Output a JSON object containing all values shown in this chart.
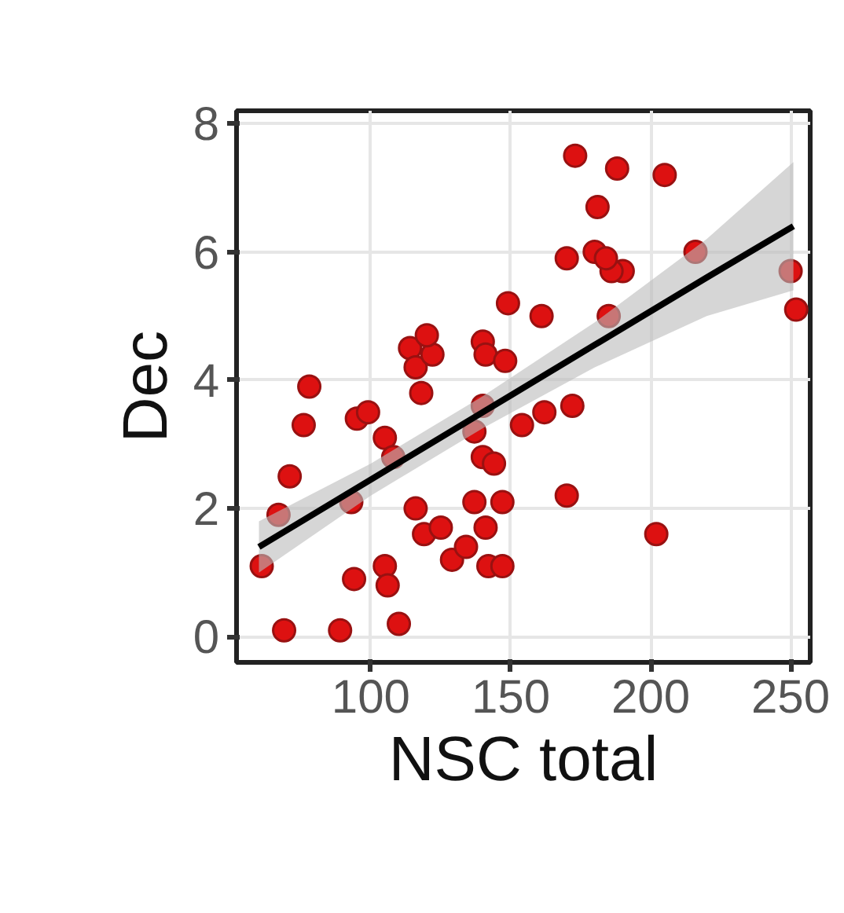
{
  "chart_data": {
    "type": "scatter",
    "xlabel": "NSC total",
    "ylabel": "Dec",
    "xlim": [
      52,
      257
    ],
    "ylim": [
      -0.4,
      8.2
    ],
    "xticks": [
      100,
      150,
      200,
      250
    ],
    "yticks": [
      0,
      2,
      4,
      6,
      8
    ],
    "grid": true,
    "series": [
      {
        "marker": "circle",
        "color": "#dd1111",
        "x": [
          61,
          69,
          71,
          67,
          76,
          78,
          93,
          89,
          94,
          95,
          99,
          105,
          108,
          110,
          105,
          106,
          116,
          119,
          114,
          116,
          122,
          120,
          118,
          125,
          129,
          134,
          140,
          137,
          140,
          140,
          141,
          137,
          141,
          142,
          147,
          144,
          147,
          148,
          154,
          149,
          162,
          161,
          170,
          172,
          170,
          173,
          180,
          181,
          188,
          190,
          186,
          184,
          185,
          205,
          216,
          202,
          250,
          252
        ],
        "values": [
          1.1,
          0.1,
          2.5,
          1.9,
          3.3,
          3.9,
          2.1,
          0.1,
          0.9,
          3.4,
          3.5,
          3.1,
          2.8,
          0.2,
          1.1,
          0.8,
          2.0,
          1.6,
          4.5,
          4.2,
          4.4,
          4.7,
          3.8,
          1.7,
          1.2,
          1.4,
          3.6,
          3.2,
          2.8,
          4.6,
          4.4,
          2.1,
          1.7,
          1.1,
          1.1,
          2.7,
          2.1,
          4.3,
          3.3,
          5.2,
          3.5,
          5.0,
          5.9,
          3.6,
          2.2,
          7.5,
          6.0,
          6.7,
          7.3,
          5.7,
          5.7,
          5.9,
          5.0,
          7.2,
          6.0,
          1.6,
          5.7,
          5.1
        ]
      },
      {
        "type": "line",
        "color": "#000000",
        "x": [
          60,
          100,
          140,
          180,
          220,
          251
        ],
        "values": [
          1.4,
          2.45,
          3.5,
          4.55,
          5.6,
          6.4
        ],
        "lower": [
          1.0,
          2.2,
          3.25,
          4.2,
          5.0,
          5.4
        ],
        "upper": [
          1.8,
          2.7,
          3.75,
          4.9,
          6.2,
          7.4
        ]
      }
    ]
  }
}
